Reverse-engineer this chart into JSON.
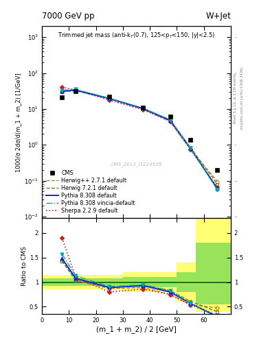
{
  "title_top": "7000 GeV pp",
  "title_right": "W+Jet",
  "plot_title": "Trimmed jet mass (anti-k_{T}(0.7), 125<p_{T}<150, |y|<2.5)",
  "ylabel_main": "1000/σ 2dσ/d(m_1 + m_2) [1/GeV]",
  "ylabel_ratio": "Ratio to CMS",
  "xlabel": "(m_1 + m_2) / 2 [GeV]",
  "watermark": "CMS_2013_I1224539",
  "x_values": [
    7.5,
    12.5,
    25.0,
    37.5,
    47.5,
    55.0,
    65.0
  ],
  "cms_y": [
    21.0,
    31.0,
    22.0,
    11.0,
    6.0,
    1.4,
    0.2
  ],
  "herwig271_y": [
    30.0,
    32.0,
    19.0,
    9.8,
    4.5,
    0.75,
    0.095
  ],
  "herwig721_y": [
    30.0,
    32.5,
    19.5,
    10.2,
    5.0,
    0.85,
    0.08
  ],
  "pythia8308_y": [
    31.0,
    33.5,
    19.5,
    10.2,
    4.8,
    0.8,
    0.06
  ],
  "pythia8308v_y": [
    33.0,
    35.0,
    20.0,
    10.5,
    5.0,
    0.8,
    0.055
  ],
  "sherpa229_y": [
    40.0,
    34.0,
    17.5,
    9.5,
    4.5,
    0.75,
    0.065
  ],
  "ratio_herwig271": [
    1.43,
    1.03,
    0.87,
    0.89,
    0.75,
    0.54,
    0.48
  ],
  "ratio_herwig721": [
    1.43,
    1.05,
    0.89,
    0.93,
    0.83,
    0.61,
    0.4
  ],
  "ratio_pythia8308": [
    1.48,
    1.08,
    0.89,
    0.93,
    0.8,
    0.57,
    0.3
  ],
  "ratio_pythia8308v": [
    1.57,
    1.13,
    0.91,
    0.95,
    0.83,
    0.57,
    0.28
  ],
  "ratio_sherpa229": [
    1.9,
    1.1,
    0.8,
    0.86,
    0.75,
    0.54,
    0.33
  ],
  "color_cms": "#000000",
  "color_herwig271": "#c87832",
  "color_herwig721": "#5a8a00",
  "color_pythia8308": "#2020cc",
  "color_pythia8308v": "#00aaaa",
  "color_sherpa229": "#cc2020",
  "xlim": [
    0,
    70
  ],
  "ylim_main": [
    0.009,
    2000
  ],
  "ylim_ratio": [
    0.35,
    2.3
  ],
  "ratio_yticks": [
    0.5,
    1.0,
    1.5,
    2.0
  ],
  "right_label1": "Rivet 3.1.10, ≥ 3.1M events",
  "right_label2": "mcplots.cern.ch [arXiv:1306.3436]",
  "yellow_x": [
    0,
    5,
    30,
    50,
    57,
    70
  ],
  "yellow_top": [
    1.15,
    1.15,
    1.2,
    1.4,
    2.3,
    2.3
  ],
  "yellow_bot": [
    0.85,
    0.85,
    0.8,
    0.6,
    0.4,
    0.4
  ],
  "green_x": [
    0,
    5,
    30,
    50,
    57,
    70
  ],
  "green_top": [
    1.08,
    1.08,
    1.1,
    1.2,
    1.8,
    1.8
  ],
  "green_bot": [
    0.92,
    0.92,
    0.9,
    0.8,
    0.55,
    0.55
  ]
}
